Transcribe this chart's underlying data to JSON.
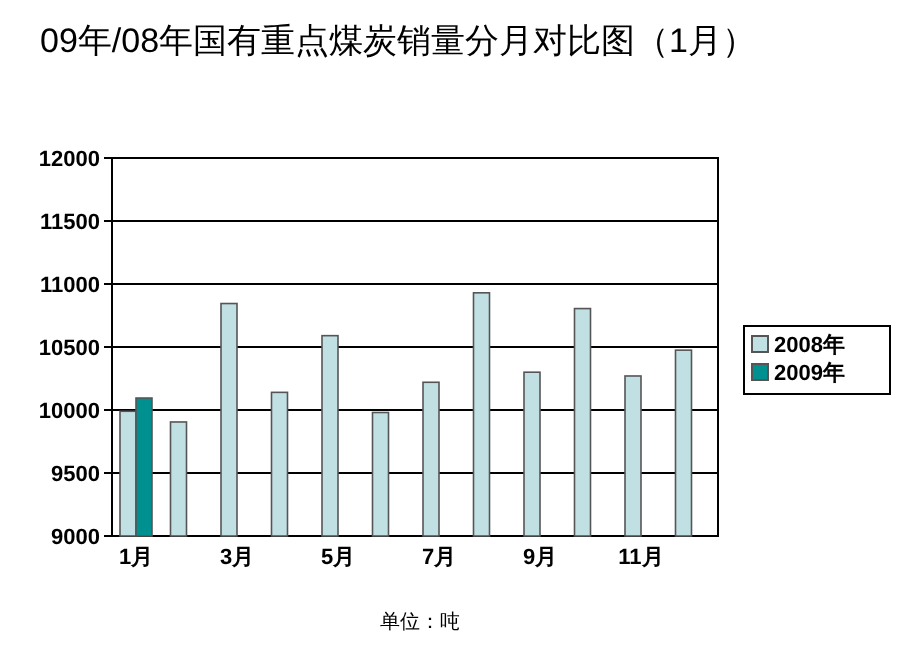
{
  "chart_data": {
    "type": "bar",
    "title": "09年/08年国有重点煤炭销量分月对比图（1月）",
    "categories": [
      "1月",
      null,
      "3月",
      null,
      "5月",
      null,
      "7月",
      null,
      "9月",
      null,
      "11月",
      null
    ],
    "series": [
      {
        "name": "2008年",
        "color": "#c0e0e4",
        "values": [
          9990,
          9905,
          10845,
          10140,
          10590,
          9980,
          10220,
          10930,
          10300,
          10805,
          10270,
          10475
        ]
      },
      {
        "name": "2009年",
        "color": "#009090",
        "values": [
          10095,
          null,
          null,
          null,
          null,
          null,
          null,
          null,
          null,
          null,
          null,
          null
        ]
      }
    ],
    "ylim": [
      9000,
      12000
    ],
    "yticks": [
      9000,
      9500,
      10000,
      10500,
      11000,
      11500,
      12000
    ],
    "grid": "y",
    "legend": "right",
    "annotations": [
      "单位：吨"
    ]
  }
}
